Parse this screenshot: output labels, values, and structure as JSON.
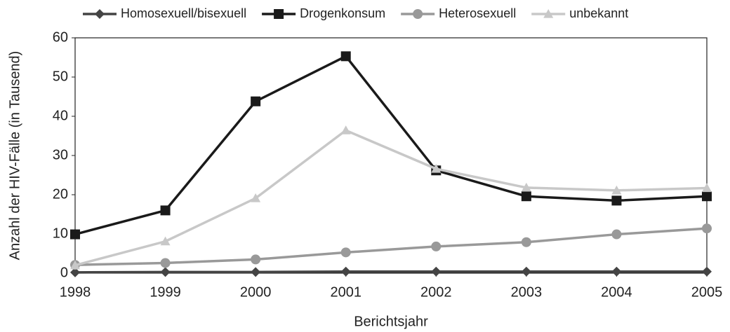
{
  "chart_data": {
    "type": "line",
    "x": [
      1998,
      1999,
      2000,
      2001,
      2002,
      2003,
      2004,
      2005
    ],
    "xlabel": "Berichtsjahr",
    "ylabel": "Anzahl der HIV-Fälle (in Tausend)",
    "xlim": [
      1998,
      2005
    ],
    "xticks": [
      1998,
      1999,
      2000,
      2001,
      2002,
      2003,
      2004,
      2005
    ],
    "ylim": [
      0,
      60
    ],
    "yticks": [
      0,
      10,
      20,
      30,
      40,
      50,
      60
    ],
    "legend": "top",
    "series": [
      {
        "name": "Homosexuell/bisexuell",
        "color": "#444444",
        "marker": "diamond",
        "values": [
          0.2,
          0.3,
          0.3,
          0.4,
          0.4,
          0.4,
          0.4,
          0.4
        ]
      },
      {
        "name": "Drogenkonsum",
        "color": "#1a1a1a",
        "marker": "square",
        "values": [
          9.9,
          16,
          43.8,
          55.3,
          26.2,
          19.6,
          18.5,
          19.6
        ]
      },
      {
        "name": "Heterosexuell",
        "color": "#999999",
        "marker": "circle",
        "values": [
          2.1,
          2.6,
          3.5,
          5.3,
          6.8,
          7.9,
          9.9,
          11.4
        ]
      },
      {
        "name": "unbekannt",
        "color": "#c8c8c8",
        "marker": "triangle",
        "values": [
          2.0,
          8.1,
          19.1,
          36.4,
          26.6,
          21.8,
          21.1,
          21.7
        ]
      }
    ]
  }
}
